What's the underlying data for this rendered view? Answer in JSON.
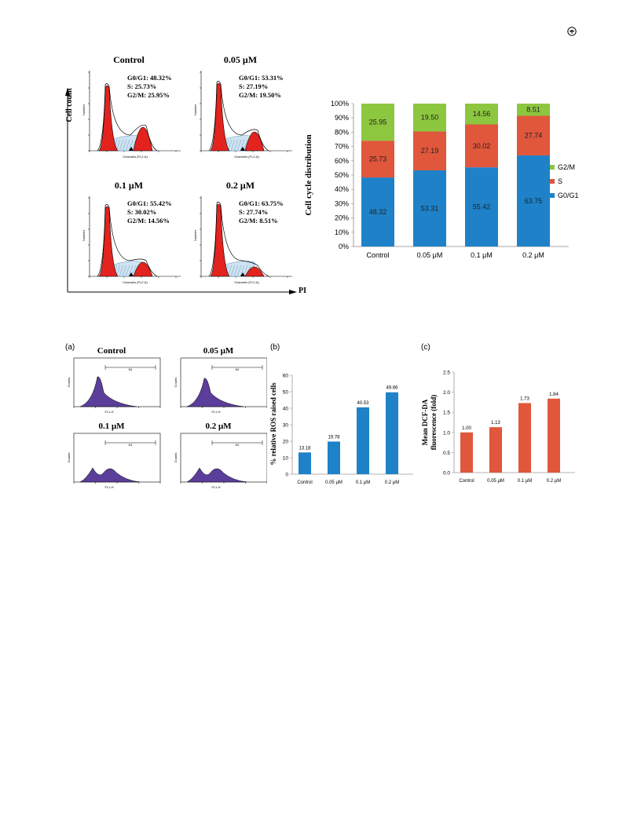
{
  "page": {
    "icon": "page-corner-icon"
  },
  "figure_top": {
    "flow_panels": [
      {
        "title": "Control",
        "g0g1": "G0/G1: 48.32%",
        "s": "S: 25.73%",
        "g2m": "G2/M: 25.95%"
      },
      {
        "title": "0.05 μM",
        "g0g1": "G0/G1: 53.31%",
        "s": "S: 27.19%",
        "g2m": "G2/M: 19.50%"
      },
      {
        "title": "0.1 μM",
        "g0g1": "G0/G1: 55.42%",
        "s": "S: 30.02%",
        "g2m": "G2/M: 14.56%"
      },
      {
        "title": "0.2 μM",
        "g0g1": "G0/G1: 63.75%",
        "s": "S: 27.74%",
        "g2m": "G2/M: 8.51%"
      }
    ],
    "y_axis_label": "Cell count",
    "x_axis_label": "PI",
    "mini_xlabel": "Channels (FL2-A)",
    "mini_ylabel": "Number"
  },
  "figure_bottom": {
    "panel_labels": [
      "(a)",
      "(b)",
      "(c)"
    ],
    "flow_panels": [
      {
        "title": "Control"
      },
      {
        "title": "0.05 μM"
      },
      {
        "title": "0.1 μM"
      },
      {
        "title": "0.2 μM"
      }
    ],
    "mini_xlabel": "FL1-H",
    "mini_ylabel": "Counts",
    "gate_label": "M1"
  },
  "chart_data": [
    {
      "type": "bar",
      "stacked": true,
      "categories": [
        "Control",
        "0.05 μM",
        "0.1 μM",
        "0.2 μM"
      ],
      "series": [
        {
          "name": "G0/G1",
          "color": "#1f82c8",
          "values": [
            48.32,
            53.31,
            55.42,
            63.75
          ]
        },
        {
          "name": "S",
          "color": "#e0573c",
          "values": [
            25.73,
            27.19,
            30.02,
            27.74
          ]
        },
        {
          "name": "G2/M",
          "color": "#8dc63f",
          "values": [
            25.95,
            19.5,
            14.56,
            8.51
          ]
        }
      ],
      "ylabel": "Cell cycle distribution",
      "yticks": [
        "0%",
        "10%",
        "20%",
        "30%",
        "40%",
        "50%",
        "60%",
        "70%",
        "80%",
        "90%",
        "100%"
      ],
      "ylim": [
        0,
        100
      ],
      "legend": "right",
      "grid": false
    },
    {
      "type": "bar",
      "categories": [
        "Control",
        "0.05 μM",
        "0.1 μM",
        "0.2 μM"
      ],
      "series": [
        {
          "color": "#1f82c8",
          "values": [
            13.18,
            19.78,
            40.53,
            49.66
          ]
        }
      ],
      "ylabel": "% relative ROS raised cells",
      "yticks": [
        "0",
        "10",
        "20",
        "30",
        "40",
        "50",
        "60"
      ],
      "ylim": [
        0,
        60
      ],
      "grid": false
    },
    {
      "type": "bar",
      "categories": [
        "Control",
        "0.05 μM",
        "0.1 μM",
        "0.2 μM"
      ],
      "series": [
        {
          "color": "#e0573c",
          "values": [
            1.0,
            1.13,
            1.73,
            1.84
          ]
        }
      ],
      "value_labels": [
        "1.00",
        "1.13",
        "1.73",
        "1.84"
      ],
      "ylabel_lines": [
        "Mean DCF-DA",
        "fluorescence (fold)"
      ],
      "yticks": [
        "0.0",
        "0.5",
        "1.0",
        "1.5",
        "2.0",
        "2.5"
      ],
      "ylim": [
        0,
        2.5
      ],
      "grid": false
    }
  ]
}
